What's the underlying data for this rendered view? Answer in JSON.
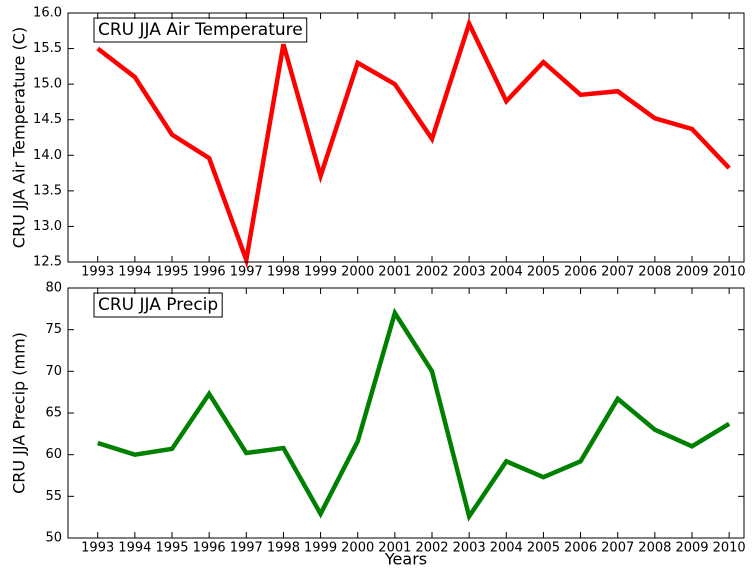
{
  "chart_data": [
    {
      "type": "line",
      "title": "CRU JJA Air Temperature",
      "ylabel": "CRU JJA Air Temperature (C)",
      "x": [
        1993,
        1994,
        1995,
        1996,
        1997,
        1998,
        1999,
        2000,
        2001,
        2002,
        2003,
        2004,
        2005,
        2006,
        2007,
        2008,
        2009,
        2010
      ],
      "values": [
        15.5,
        15.1,
        14.29,
        13.96,
        12.53,
        15.56,
        13.71,
        15.3,
        15.0,
        14.23,
        15.85,
        14.76,
        15.31,
        14.85,
        14.9,
        14.52,
        14.37,
        13.82
      ],
      "color": "#ff0000",
      "xlim": [
        1992.2,
        2010.4
      ],
      "xticks": [
        1993,
        1994,
        1995,
        1996,
        1997,
        1998,
        1999,
        2000,
        2001,
        2002,
        2003,
        2004,
        2005,
        2006,
        2007,
        2008,
        2009,
        2010
      ],
      "ylim": [
        12.5,
        16.0
      ],
      "yticks": [
        12.5,
        {
          "value": 13,
          "label": "13.0"
        },
        13.5,
        {
          "value": 14,
          "label": "14.0"
        },
        14.5,
        {
          "value": 15,
          "label": "15.0"
        },
        15.5,
        {
          "value": 16,
          "label": "16.0"
        }
      ]
    },
    {
      "type": "line",
      "title": "CRU JJA Precip",
      "ylabel": "CRU JJA Precip (mm)",
      "xlabel": "Years",
      "x": [
        1993,
        1994,
        1995,
        1996,
        1997,
        1998,
        1999,
        2000,
        2001,
        2002,
        2003,
        2004,
        2005,
        2006,
        2007,
        2008,
        2009,
        2010
      ],
      "values": [
        61.4,
        60.0,
        60.7,
        67.3,
        60.2,
        60.8,
        52.9,
        61.6,
        77.0,
        70.0,
        52.6,
        59.2,
        57.3,
        59.2,
        66.7,
        63.0,
        61.0,
        63.7
      ],
      "color": "#008000",
      "xlim": [
        1992.2,
        2010.4
      ],
      "xticks": [
        1993,
        1994,
        1995,
        1996,
        1997,
        1998,
        1999,
        2000,
        2001,
        2002,
        2003,
        2004,
        2005,
        2006,
        2007,
        2008,
        2009,
        2010
      ],
      "ylim": [
        50,
        80
      ],
      "yticks": [
        50,
        55,
        60,
        65,
        70,
        75,
        80
      ]
    }
  ]
}
